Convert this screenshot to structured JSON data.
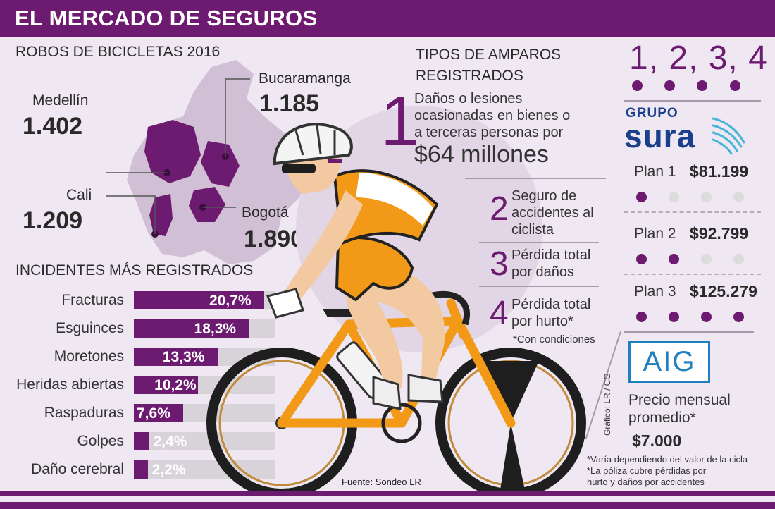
{
  "header": {
    "title": "EL MERCADO DE SEGUROS"
  },
  "robos": {
    "title": "ROBOS DE BICICLETAS 2016",
    "cities": [
      {
        "name": "Medellín",
        "value": "1.402"
      },
      {
        "name": "Bucaramanga",
        "value": "1.185"
      },
      {
        "name": "Cali",
        "value": "1.209"
      },
      {
        "name": "Bogotá",
        "value": "1.890"
      }
    ]
  },
  "incidentes": {
    "title": "INCIDENTES MÁS REGISTRADOS",
    "items": [
      {
        "label": "Fracturas",
        "value": "20,7%",
        "pct": 20.7
      },
      {
        "label": "Esguinces",
        "value": "18,3%",
        "pct": 18.3
      },
      {
        "label": "Moretones",
        "value": "13,3%",
        "pct": 13.3
      },
      {
        "label": "Heridas abiertas",
        "value": "10,2%",
        "pct": 10.2
      },
      {
        "label": "Raspaduras",
        "value": "7,6%",
        "pct": 7.6
      },
      {
        "label": "Golpes",
        "value": "2,4%",
        "pct": 2.4
      },
      {
        "label": "Daño cerebral",
        "value": "2,2%",
        "pct": 2.2
      }
    ]
  },
  "amparos": {
    "title_line1": "TIPOS DE AMPAROS",
    "title_line2": "REGISTRADOS",
    "items": [
      {
        "num": "1",
        "line1": "Daños o lesiones",
        "line2": "ocasionadas en bienes o",
        "line3": "a terceras personas por",
        "amount": "$64 millones"
      },
      {
        "num": "2",
        "line1": "Seguro de",
        "line2": "accidentes al",
        "line3": "ciclista"
      },
      {
        "num": "3",
        "line1": "Pérdida total",
        "line2": "por daños"
      },
      {
        "num": "4",
        "line1": "Pérdida total",
        "line2": "por hurto*"
      }
    ],
    "note": "*Con condiciones"
  },
  "sura": {
    "numbers": "1, 2, 3, 4",
    "logo_top": "GRUPO",
    "logo_main": "sura",
    "plans": [
      {
        "name": "Plan 1",
        "price": "$81.199",
        "level": 1
      },
      {
        "name": "Plan 2",
        "price": "$92.799",
        "level": 2
      },
      {
        "name": "Plan 3",
        "price": "$125.279",
        "level": 4
      }
    ]
  },
  "aig": {
    "logo": "AIG",
    "price_label_line1": "Precio mensual",
    "price_label_line2": "promedio*",
    "price": "$7.000",
    "notes": [
      "*Varía dependiendo del valor de la cicla",
      "*La póliza cubre pérdidas por",
      "hurto y daños por accidentes"
    ]
  },
  "credit": "Gráfico: LR / CG",
  "source": "Fuente: Sondeo LR",
  "colors": {
    "purple": "#6d1b70",
    "orange": "#f29a17",
    "bg": "#efe7f1",
    "sura_blue": "#1a3f8c",
    "aig_blue": "#1f7fbf"
  }
}
